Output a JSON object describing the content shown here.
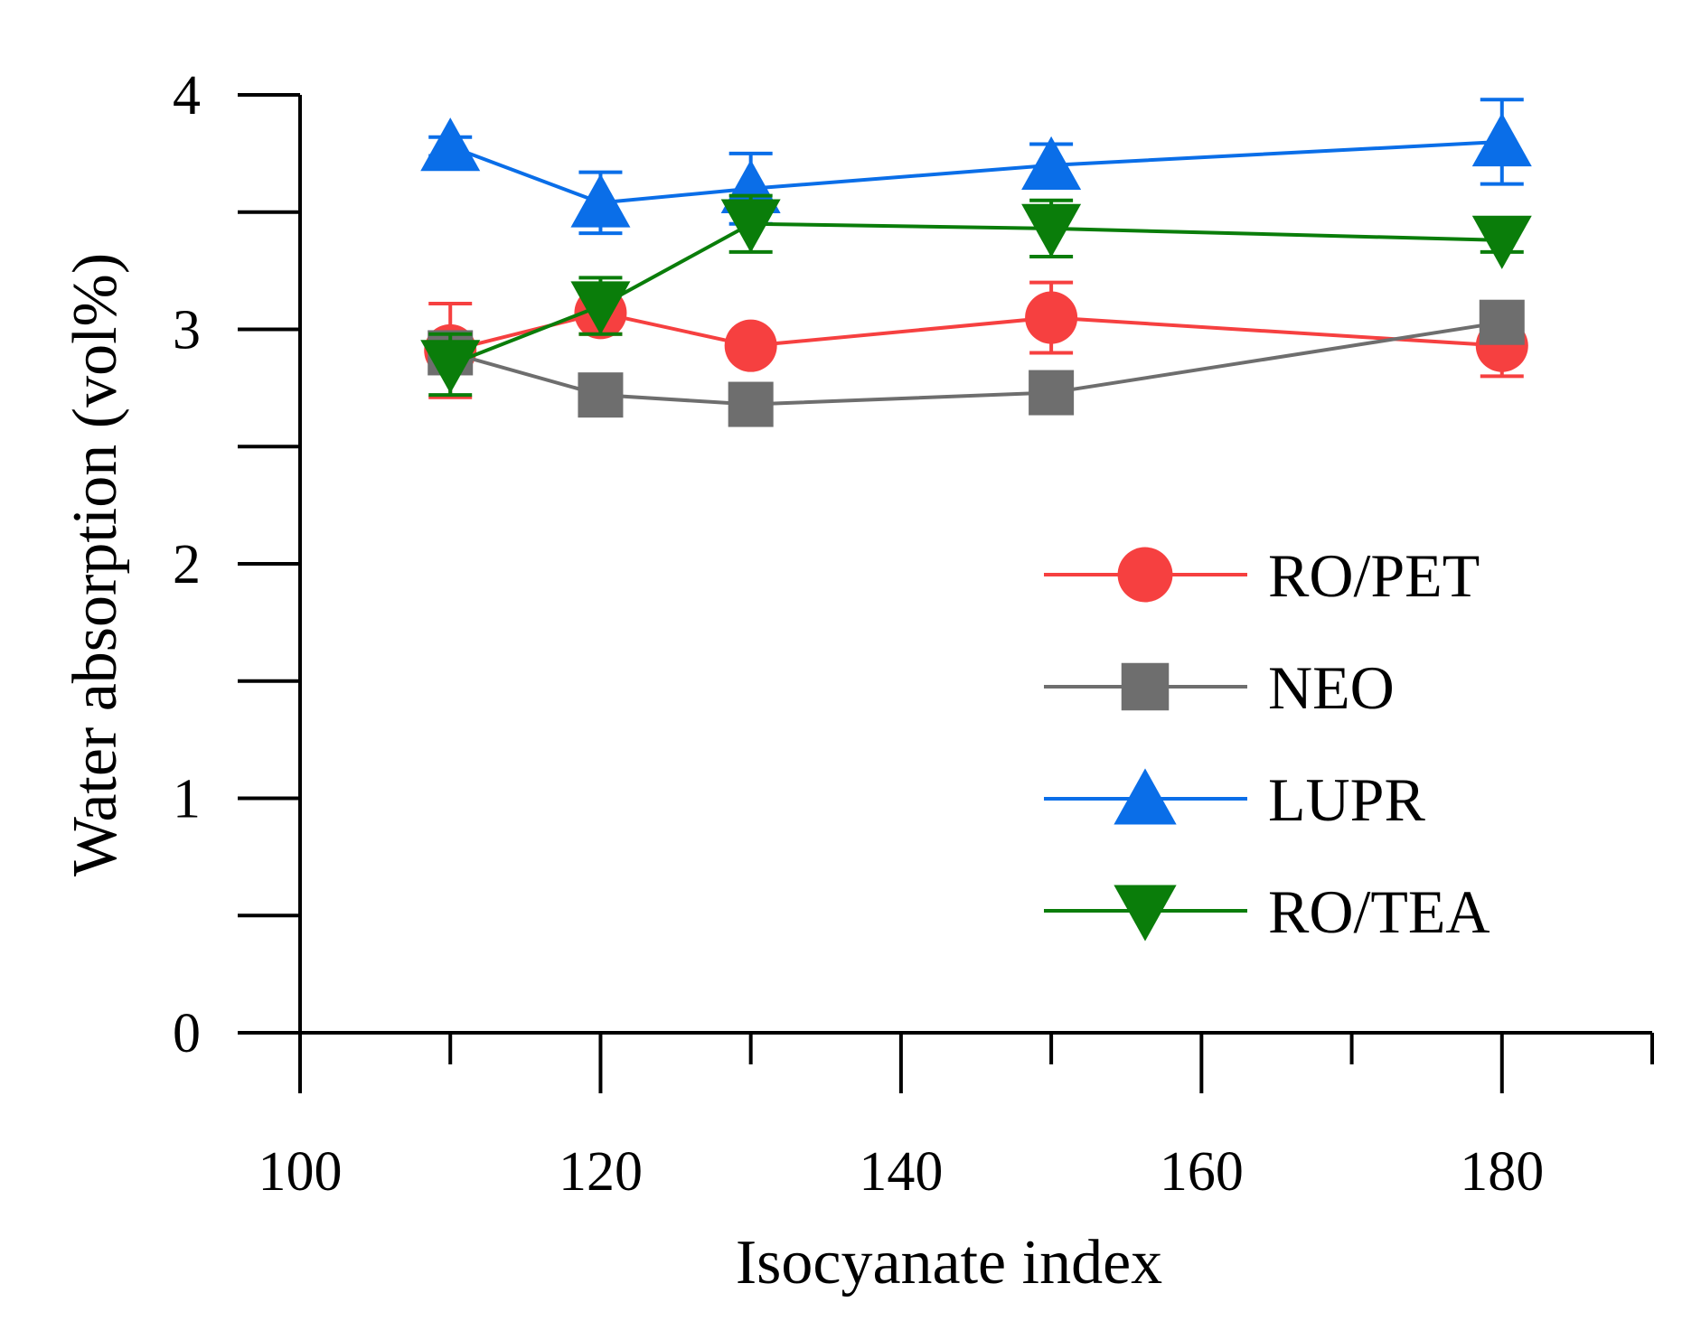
{
  "chart_data": {
    "type": "line",
    "title": "",
    "xlabel": "Isocyanate index",
    "ylabel": "Water absorption (vol%)",
    "xlim": [
      100,
      190
    ],
    "ylim": [
      0,
      4
    ],
    "x_ticks": [
      "100",
      "120",
      "140",
      "160",
      "180"
    ],
    "y_ticks": [
      "0",
      "1",
      "2",
      "3",
      "4"
    ],
    "grid": false,
    "legend_position": "center-right",
    "x": [
      110,
      120,
      130,
      150,
      180
    ],
    "series": [
      {
        "name": "RO/PET",
        "color": "#f64040",
        "marker": "circle",
        "values": [
          2.91,
          3.07,
          2.93,
          3.05,
          2.93
        ],
        "errors": [
          0.2,
          0.09,
          0.04,
          0.15,
          0.13
        ]
      },
      {
        "name": "NEO",
        "color": "#6e6e6e",
        "marker": "square",
        "values": [
          2.9,
          2.72,
          2.68,
          2.73,
          3.03
        ],
        "errors": [
          0.07,
          0.04,
          0.03,
          0.05,
          0.02
        ]
      },
      {
        "name": "LUPR",
        "color": "#0a6ee8",
        "marker": "triangle-up",
        "values": [
          3.78,
          3.54,
          3.6,
          3.7,
          3.8
        ],
        "errors": [
          0.04,
          0.13,
          0.15,
          0.09,
          0.18
        ]
      },
      {
        "name": "RO/TEA",
        "color": "#0a7d0a",
        "marker": "triangle-down",
        "values": [
          2.85,
          3.1,
          3.45,
          3.43,
          3.38
        ],
        "errors": [
          0.13,
          0.12,
          0.12,
          0.12,
          0.05
        ]
      }
    ]
  }
}
